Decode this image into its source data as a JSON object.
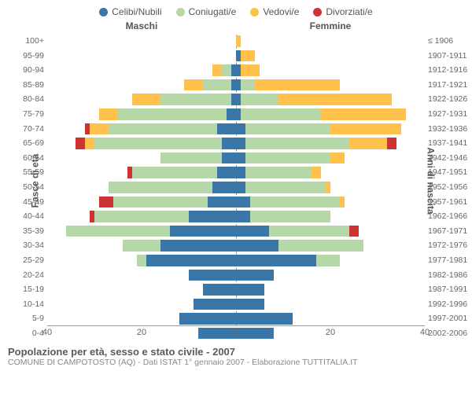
{
  "legend": [
    {
      "label": "Celibi/Nubili",
      "color": "#3a76a8"
    },
    {
      "label": "Coniugati/e",
      "color": "#b6d7a8"
    },
    {
      "label": "Vedovi/e",
      "color": "#ffc04c"
    },
    {
      "label": "Divorziati/e",
      "color": "#cc3333"
    }
  ],
  "headers": {
    "left": "Maschi",
    "right": "Femmine"
  },
  "axis_titles": {
    "left": "Fasce di età",
    "right": "Anni di nascita"
  },
  "title": "Popolazione per età, sesso e stato civile - 2007",
  "subtitle": "COMUNE DI CAMPOTOSTO (AQ) - Dati ISTAT 1° gennaio 2007 - Elaborazione TUTTITALIA.IT",
  "x_max": 40,
  "x_ticks_left": [
    40,
    20,
    0
  ],
  "x_ticks_right": [
    20,
    40
  ],
  "colors": {
    "single": "#3a76a8",
    "married": "#b6d7a8",
    "widowed": "#ffc04c",
    "divorced": "#cc3333",
    "grid": "#e0e0e0",
    "text": "#666666",
    "background": "#ffffff"
  },
  "bar_fontsize": 10.5,
  "rows": [
    {
      "age": "100+",
      "birth": "≤ 1906",
      "m": {
        "s": 0,
        "m": 0,
        "w": 0,
        "d": 0
      },
      "f": {
        "s": 0,
        "m": 0,
        "w": 1,
        "d": 0
      }
    },
    {
      "age": "95-99",
      "birth": "1907-1911",
      "m": {
        "s": 0,
        "m": 0,
        "w": 0,
        "d": 0
      },
      "f": {
        "s": 1,
        "m": 0,
        "w": 3,
        "d": 0
      }
    },
    {
      "age": "90-94",
      "birth": "1912-1916",
      "m": {
        "s": 1,
        "m": 2,
        "w": 2,
        "d": 0
      },
      "f": {
        "s": 1,
        "m": 0,
        "w": 4,
        "d": 0
      }
    },
    {
      "age": "85-89",
      "birth": "1917-1921",
      "m": {
        "s": 1,
        "m": 6,
        "w": 4,
        "d": 0
      },
      "f": {
        "s": 1,
        "m": 3,
        "w": 18,
        "d": 0
      }
    },
    {
      "age": "80-84",
      "birth": "1922-1926",
      "m": {
        "s": 1,
        "m": 15,
        "w": 6,
        "d": 0
      },
      "f": {
        "s": 1,
        "m": 8,
        "w": 24,
        "d": 0
      }
    },
    {
      "age": "75-79",
      "birth": "1927-1931",
      "m": {
        "s": 2,
        "m": 23,
        "w": 4,
        "d": 0
      },
      "f": {
        "s": 1,
        "m": 17,
        "w": 18,
        "d": 0
      }
    },
    {
      "age": "70-74",
      "birth": "1932-1936",
      "m": {
        "s": 4,
        "m": 23,
        "w": 4,
        "d": 1
      },
      "f": {
        "s": 2,
        "m": 18,
        "w": 15,
        "d": 0
      }
    },
    {
      "age": "65-69",
      "birth": "1937-1941",
      "m": {
        "s": 3,
        "m": 27,
        "w": 2,
        "d": 2
      },
      "f": {
        "s": 2,
        "m": 22,
        "w": 8,
        "d": 2
      }
    },
    {
      "age": "60-64",
      "birth": "1942-1946",
      "m": {
        "s": 3,
        "m": 13,
        "w": 0,
        "d": 0
      },
      "f": {
        "s": 2,
        "m": 18,
        "w": 3,
        "d": 0
      }
    },
    {
      "age": "55-59",
      "birth": "1947-1951",
      "m": {
        "s": 4,
        "m": 18,
        "w": 0,
        "d": 1
      },
      "f": {
        "s": 2,
        "m": 14,
        "w": 2,
        "d": 0
      }
    },
    {
      "age": "50-54",
      "birth": "1952-1956",
      "m": {
        "s": 5,
        "m": 22,
        "w": 0,
        "d": 0
      },
      "f": {
        "s": 2,
        "m": 17,
        "w": 1,
        "d": 0
      }
    },
    {
      "age": "45-49",
      "birth": "1957-1961",
      "m": {
        "s": 6,
        "m": 20,
        "w": 0,
        "d": 3
      },
      "f": {
        "s": 3,
        "m": 19,
        "w": 1,
        "d": 0
      }
    },
    {
      "age": "40-44",
      "birth": "1962-1966",
      "m": {
        "s": 10,
        "m": 20,
        "w": 0,
        "d": 1
      },
      "f": {
        "s": 3,
        "m": 17,
        "w": 0,
        "d": 0
      }
    },
    {
      "age": "35-39",
      "birth": "1967-1971",
      "m": {
        "s": 14,
        "m": 22,
        "w": 0,
        "d": 0
      },
      "f": {
        "s": 7,
        "m": 17,
        "w": 0,
        "d": 2
      }
    },
    {
      "age": "30-34",
      "birth": "1972-1976",
      "m": {
        "s": 16,
        "m": 8,
        "w": 0,
        "d": 0
      },
      "f": {
        "s": 9,
        "m": 18,
        "w": 0,
        "d": 0
      }
    },
    {
      "age": "25-29",
      "birth": "1977-1981",
      "m": {
        "s": 19,
        "m": 2,
        "w": 0,
        "d": 0
      },
      "f": {
        "s": 17,
        "m": 5,
        "w": 0,
        "d": 0
      }
    },
    {
      "age": "20-24",
      "birth": "1982-1986",
      "m": {
        "s": 10,
        "m": 0,
        "w": 0,
        "d": 0
      },
      "f": {
        "s": 8,
        "m": 0,
        "w": 0,
        "d": 0
      }
    },
    {
      "age": "15-19",
      "birth": "1987-1991",
      "m": {
        "s": 7,
        "m": 0,
        "w": 0,
        "d": 0
      },
      "f": {
        "s": 6,
        "m": 0,
        "w": 0,
        "d": 0
      }
    },
    {
      "age": "10-14",
      "birth": "1992-1996",
      "m": {
        "s": 9,
        "m": 0,
        "w": 0,
        "d": 0
      },
      "f": {
        "s": 6,
        "m": 0,
        "w": 0,
        "d": 0
      }
    },
    {
      "age": "5-9",
      "birth": "1997-2001",
      "m": {
        "s": 12,
        "m": 0,
        "w": 0,
        "d": 0
      },
      "f": {
        "s": 12,
        "m": 0,
        "w": 0,
        "d": 0
      }
    },
    {
      "age": "0-4",
      "birth": "2002-2006",
      "m": {
        "s": 8,
        "m": 0,
        "w": 0,
        "d": 0
      },
      "f": {
        "s": 8,
        "m": 0,
        "w": 0,
        "d": 0
      }
    }
  ]
}
